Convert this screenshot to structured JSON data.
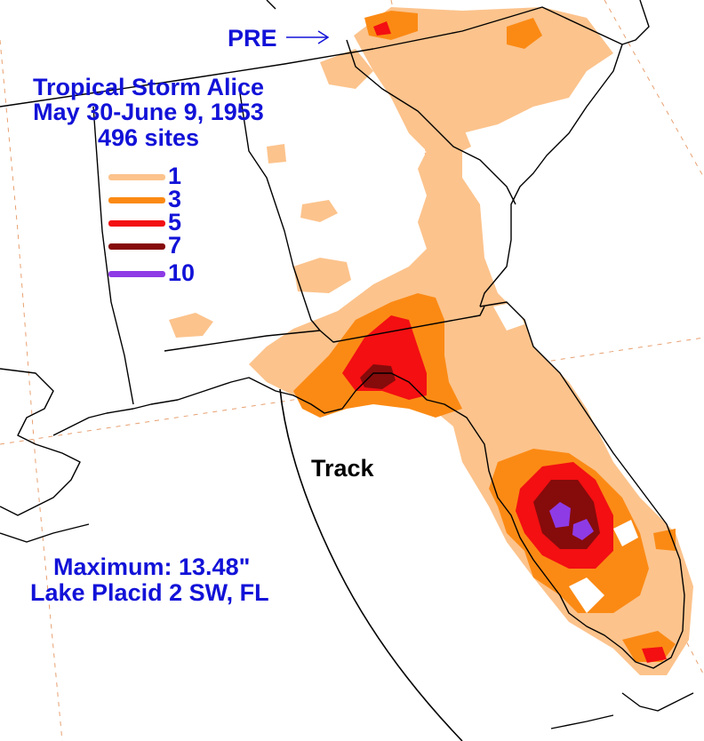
{
  "title": {
    "line1": "Tropical Storm Alice",
    "line2": "May 30-June 9, 1953",
    "line3": "496 sites"
  },
  "pre_label": "PRE",
  "track_label": "Track",
  "legend": {
    "items": [
      {
        "label": "1",
        "color": "#fcc38c"
      },
      {
        "label": "3",
        "color": "#fb8a14"
      },
      {
        "label": "5",
        "color": "#f30f12"
      },
      {
        "label": "7",
        "color": "#860b0b"
      },
      {
        "label": "10",
        "color": "#8e3be6"
      }
    ]
  },
  "maximum": {
    "line1": "Maximum:  13.48\"",
    "line2": "Lake Placid 2 SW, FL"
  },
  "colors": {
    "text": "#1212d8",
    "ocean": "#ffffff",
    "boundary": "#000000",
    "graticule": "#e8a070"
  }
}
